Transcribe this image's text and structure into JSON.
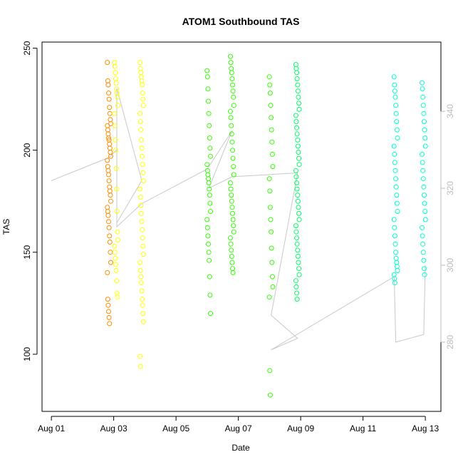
{
  "chart_data": {
    "type": "scatter",
    "title": "ATOM1 Southbound TAS",
    "xlabel": "Date",
    "ylabel": "TAS",
    "x_unit": "days since Aug 01",
    "xlim": [
      -0.3,
      12.5
    ],
    "ylim": [
      72,
      253
    ],
    "y2lim": [
      262,
      358
    ],
    "x_ticks": [
      {
        "value": 0,
        "label": "Aug 01"
      },
      {
        "value": 2,
        "label": "Aug 03"
      },
      {
        "value": 4,
        "label": "Aug 05"
      },
      {
        "value": 6,
        "label": "Aug 07"
      },
      {
        "value": 8,
        "label": "Aug 09"
      },
      {
        "value": 10,
        "label": "Aug 11"
      },
      {
        "value": 12,
        "label": "Aug 13"
      }
    ],
    "y_ticks": [
      {
        "value": 100,
        "label": "100"
      },
      {
        "value": 150,
        "label": "150"
      },
      {
        "value": 200,
        "label": "200"
      },
      {
        "value": 250,
        "label": "250"
      }
    ],
    "y2_ticks": [
      {
        "value": 280,
        "label": "280"
      },
      {
        "value": 300,
        "label": "300"
      },
      {
        "value": 320,
        "label": "320"
      },
      {
        "value": 340,
        "label": "340"
      }
    ],
    "marker_colors": [
      "#ff8c00",
      "#ffff00",
      "#32ff00",
      "#00ff66",
      "#00ffcc"
    ],
    "line_color": "#c8c8c8",
    "clusters": [
      {
        "x": 1.85,
        "color": "#ff8c00",
        "tas_values": [
          243,
          234,
          232,
          228,
          225,
          221,
          218,
          215,
          213,
          212,
          210,
          208,
          206,
          205,
          203,
          201,
          199,
          197,
          195,
          192,
          190,
          188,
          185,
          182,
          180,
          178,
          175,
          172,
          170,
          168,
          165,
          162,
          158,
          155,
          150,
          145,
          140,
          127,
          124,
          121,
          118,
          115
        ]
      },
      {
        "x": 2.08,
        "color": "#ffff00",
        "tas_values": [
          243,
          241,
          238,
          235,
          233,
          230,
          228,
          226,
          222,
          218,
          212,
          205,
          200,
          191,
          181,
          170,
          160,
          156,
          153,
          150,
          147,
          144,
          141,
          136,
          130,
          128
        ]
      },
      {
        "x": 2.9,
        "color": "#ffff00",
        "tas_values": [
          243,
          240,
          238,
          236,
          234,
          232,
          228,
          225,
          222,
          218,
          214,
          210,
          205,
          201,
          197,
          193,
          189,
          185,
          181,
          177,
          173,
          169,
          165,
          161,
          157,
          153,
          149,
          145,
          141,
          138,
          135,
          131,
          127,
          124,
          120,
          116,
          99,
          94
        ]
      },
      {
        "x": 5.05,
        "color": "#32ff00",
        "tas_values": [
          239,
          236,
          230,
          224,
          218,
          212,
          206,
          201,
          197,
          193,
          190,
          188,
          186,
          184,
          181,
          178,
          174,
          170,
          166,
          162,
          158,
          154,
          150,
          146,
          138,
          129,
          120
        ]
      },
      {
        "x": 5.8,
        "color": "#32ff00",
        "tas_values": [
          246,
          243,
          240,
          238,
          235,
          232,
          229,
          226,
          222,
          219,
          216,
          212,
          208,
          204,
          200,
          196,
          192,
          188,
          184,
          181,
          178,
          175,
          172,
          169,
          166,
          163,
          160,
          157,
          154,
          151,
          148,
          145,
          142,
          140
        ]
      },
      {
        "x": 7.05,
        "color": "#32ff00",
        "tas_values": [
          236,
          232,
          228,
          222,
          216,
          210,
          204,
          198,
          192,
          186,
          180,
          172,
          166,
          160,
          152,
          145,
          138,
          133,
          128,
          92,
          80
        ]
      },
      {
        "x": 7.9,
        "color": "#00ff66",
        "tas_values": [
          242,
          240,
          238,
          235,
          232,
          229,
          226,
          223,
          220,
          217,
          214,
          211,
          208,
          205,
          202,
          199,
          196,
          193,
          190,
          187,
          184,
          181,
          178,
          175,
          172,
          169,
          166,
          163,
          160,
          157,
          154,
          151,
          148,
          145,
          142,
          139,
          136,
          133,
          130,
          127
        ]
      },
      {
        "x": 11.05,
        "color": "#00ffcc",
        "tas_values": [
          236,
          232,
          229,
          226,
          222,
          218,
          214,
          210,
          206,
          202,
          198,
          194,
          190,
          186,
          182,
          178,
          174,
          170,
          166,
          162,
          158,
          154,
          150,
          147,
          145,
          143,
          141,
          139,
          137,
          135
        ]
      },
      {
        "x": 11.95,
        "color": "#00ffcc",
        "tas_values": [
          233,
          230,
          226,
          222,
          218,
          214,
          210,
          206,
          202,
          198,
          194,
          190,
          186,
          182,
          178,
          174,
          170,
          166,
          162,
          158,
          154,
          150,
          146,
          142,
          139
        ]
      }
    ],
    "track_line": {
      "axis": "right",
      "x": [
        0,
        1.85,
        2.1,
        2.1,
        2.9,
        2.1,
        2.1,
        2.9,
        5.0,
        5.8,
        5.05,
        5.8,
        7.9,
        7.05,
        7.9,
        7.05,
        11.0,
        11.05,
        11.95,
        12.0
      ],
      "y": [
        322,
        328,
        330,
        311,
        322,
        346,
        310,
        316,
        325,
        335,
        320,
        323,
        324,
        287,
        281,
        278,
        297,
        280,
        282,
        300
      ]
    }
  }
}
